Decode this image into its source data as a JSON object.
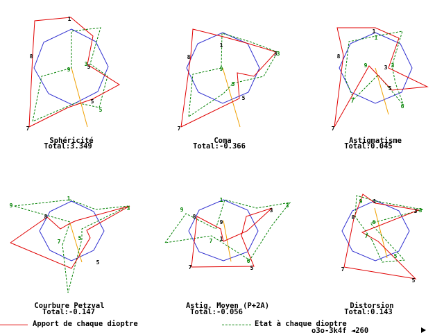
{
  "colors": {
    "apport": "#e00000",
    "etat": "#008000",
    "polygon": "#3030d0",
    "axis": "#f0a000",
    "text": "#000000"
  },
  "panels": [
    {
      "title": "Sphéricité",
      "total": "Total:3.349",
      "red": [
        [
          "7",
          42,
          183
        ],
        [
          "8",
          47,
          80
        ],
        [
          "9",
          50,
          30
        ],
        [
          "1",
          102,
          25
        ],
        [
          "2",
          134,
          52
        ],
        [
          "3",
          126,
          93
        ],
        [
          "4",
          172,
          122
        ],
        [
          "5",
          133,
          143
        ],
        [
          "6",
          98,
          155
        ],
        [
          "7",
          42,
          183
        ]
      ],
      "green": [
        [
          "7",
          47,
          175
        ],
        [
          "8",
          60,
          110
        ],
        [
          "9",
          103,
          98
        ],
        [
          "1",
          103,
          45
        ],
        [
          "2",
          145,
          40
        ],
        [
          "3",
          130,
          92
        ],
        [
          "4",
          155,
          110
        ],
        [
          "5",
          143,
          155
        ],
        [
          "6",
          110,
          148
        ],
        [
          "7",
          47,
          175
        ]
      ],
      "labels": [
        [
          "1",
          100,
          27,
          "k"
        ],
        [
          "8",
          45,
          81,
          "k"
        ],
        [
          "9",
          99,
          100,
          "g"
        ],
        [
          "5",
          128,
          96,
          "k"
        ],
        [
          "3",
          124,
          92,
          "g"
        ],
        [
          "5",
          133,
          146,
          "k"
        ],
        [
          "5",
          145,
          158,
          "g"
        ],
        [
          "7",
          40,
          185,
          "k"
        ]
      ],
      "poly": [
        [
          103,
          42
        ],
        [
          138,
          60
        ],
        [
          156,
          96
        ],
        [
          141,
          132
        ],
        [
          104,
          151
        ],
        [
          70,
          135
        ],
        [
          49,
          98
        ],
        [
          63,
          61
        ]
      ],
      "axis": [
        [
          103,
          98
        ],
        [
          126,
          183
        ]
      ]
    },
    {
      "title": "Coma",
      "total": "Total:-0.366",
      "red": [
        [
          "7",
          261,
          183
        ],
        [
          "8",
          275,
          80
        ],
        [
          "9",
          278,
          42
        ],
        [
          "1",
          322,
          53
        ],
        [
          "2",
          355,
          62
        ],
        [
          "3",
          398,
          75
        ],
        [
          "4",
          366,
          110
        ],
        [
          "5",
          342,
          105
        ],
        [
          "6",
          345,
          142
        ],
        [
          "7",
          261,
          183
        ]
      ],
      "green": [
        [
          "7",
          272,
          168
        ],
        [
          "8",
          278,
          107
        ],
        [
          "9",
          319,
          98
        ],
        [
          "1",
          320,
          48
        ],
        [
          "2",
          360,
          60
        ],
        [
          "3",
          400,
          75
        ],
        [
          "4",
          380,
          110
        ],
        [
          "5",
          336,
          120
        ],
        [
          "6",
          322,
          135
        ],
        [
          "7",
          272,
          168
        ]
      ],
      "labels": [
        [
          "1",
          319,
          65,
          "k"
        ],
        [
          "8",
          272,
          82,
          "k"
        ],
        [
          "9",
          319,
          99,
          "g"
        ],
        [
          "3",
          397,
          77,
          "k"
        ],
        [
          "3",
          401,
          77,
          "g"
        ],
        [
          "5",
          336,
          121,
          "g"
        ],
        [
          "5",
          351,
          141,
          "k"
        ],
        [
          "7",
          258,
          185,
          "k"
        ]
      ],
      "poly": [
        [
          321,
          47
        ],
        [
          357,
          63
        ],
        [
          374,
          98
        ],
        [
          358,
          133
        ],
        [
          321,
          149
        ],
        [
          286,
          133
        ],
        [
          269,
          98
        ],
        [
          285,
          63
        ]
      ],
      "axis": [
        [
          321,
          98
        ],
        [
          346,
          183
        ]
      ]
    },
    {
      "title": "Astigmatisme",
      "total": "Total:0.045",
      "red": [
        [
          "7",
          482,
          183
        ],
        [
          "8",
          495,
          80
        ],
        [
          "9",
          486,
          40
        ],
        [
          "1",
          541,
          40
        ],
        [
          "2",
          575,
          55
        ],
        [
          "3",
          560,
          98
        ],
        [
          "4",
          616,
          125
        ],
        [
          "5",
          565,
          130
        ],
        [
          "6",
          532,
          95
        ],
        [
          "7",
          482,
          183
        ]
      ],
      "green": [
        [
          "7",
          510,
          143
        ],
        [
          "8",
          497,
          112
        ],
        [
          "9",
          503,
          60
        ],
        [
          "1",
          542,
          52
        ],
        [
          "2",
          580,
          45
        ],
        [
          "3",
          565,
          95
        ],
        [
          "4",
          570,
          120
        ],
        [
          "5",
          582,
          152
        ],
        [
          "6",
          545,
          108
        ],
        [
          "7",
          510,
          143
        ]
      ],
      "labels": [
        [
          "1",
          539,
          45,
          "k"
        ],
        [
          "1",
          542,
          54,
          "g"
        ],
        [
          "8",
          488,
          81,
          "k"
        ],
        [
          "9",
          527,
          94,
          "g"
        ],
        [
          "3",
          556,
          97,
          "k"
        ],
        [
          "3",
          566,
          94,
          "g"
        ],
        [
          "5",
          562,
          127,
          "k"
        ],
        [
          "6",
          580,
          153,
          "g"
        ],
        [
          "7",
          508,
          145,
          "g"
        ],
        [
          "7",
          480,
          185,
          "k"
        ]
      ],
      "poly": [
        [
          541,
          47
        ],
        [
          577,
          63
        ],
        [
          594,
          98
        ],
        [
          579,
          133
        ],
        [
          541,
          149
        ],
        [
          506,
          133
        ],
        [
          489,
          98
        ],
        [
          505,
          63
        ]
      ],
      "axis": [
        [
          541,
          98
        ],
        [
          560,
          165
        ]
      ]
    },
    {
      "title": "Courbure Petzval",
      "total": "Total:-0.147",
      "red": [
        [
          "7",
          15,
          350
        ],
        [
          "8",
          68,
          313
        ],
        [
          "9",
          87,
          330
        ],
        [
          "1",
          101,
          322
        ],
        [
          "2",
          110,
          318
        ],
        [
          "3",
          187,
          297
        ],
        [
          "4",
          125,
          332
        ],
        [
          "5",
          130,
          343
        ],
        [
          "6",
          103,
          387
        ],
        [
          "7",
          15,
          350
        ]
      ],
      "green": [
        [
          "7",
          90,
          353
        ],
        [
          "8",
          101,
          320
        ],
        [
          "9",
          20,
          297
        ],
        [
          "1",
          101,
          288
        ],
        [
          "2",
          138,
          302
        ],
        [
          "3",
          185,
          297
        ],
        [
          "4",
          118,
          330
        ],
        [
          "5",
          118,
          345
        ],
        [
          "6",
          98,
          422
        ],
        [
          "7",
          90,
          353
        ]
      ],
      "labels": [
        [
          "1",
          99,
          286,
          "g"
        ],
        [
          "9",
          16,
          296,
          "g"
        ],
        [
          "8",
          66,
          312,
          "k"
        ],
        [
          "3",
          185,
          300,
          "g"
        ],
        [
          "5",
          115,
          343,
          "g"
        ],
        [
          "7",
          85,
          348,
          "g"
        ],
        [
          "5",
          141,
          378,
          "k"
        ]
      ],
      "poly": [
        [
          103,
          290
        ],
        [
          135,
          305
        ],
        [
          150,
          333
        ],
        [
          135,
          361
        ],
        [
          103,
          376
        ],
        [
          72,
          361
        ],
        [
          57,
          333
        ],
        [
          72,
          305
        ]
      ],
      "axis": [
        [
          101,
          322
        ],
        [
          118,
          378
        ]
      ]
    },
    {
      "title": "Astig. Moyen (P+2A)",
      "total": "Total:-0.056",
      "red": [
        [
          "7",
          276,
          385
        ],
        [
          "8",
          284,
          312
        ],
        [
          "9",
          318,
          330
        ],
        [
          "1",
          322,
          348
        ],
        [
          "2",
          356,
          333
        ],
        [
          "3",
          392,
          300
        ],
        [
          "4",
          355,
          312
        ],
        [
          "5",
          348,
          340
        ],
        [
          "6",
          366,
          384
        ],
        [
          "7",
          276,
          385
        ]
      ],
      "green": [
        [
          "7",
          238,
          350
        ],
        [
          "8",
          268,
          308
        ],
        [
          "9",
          311,
          330
        ],
        [
          "1",
          324,
          288
        ],
        [
          "2",
          370,
          300
        ],
        [
          "3",
          418,
          292
        ],
        [
          "4",
          392,
          325
        ],
        [
          "5",
          360,
          375
        ],
        [
          "6",
          305,
          340
        ],
        [
          "7",
          238,
          350
        ]
      ],
      "labels": [
        [
          "9",
          262,
          302,
          "g"
        ],
        [
          "8",
          280,
          312,
          "k"
        ],
        [
          "1",
          319,
          288,
          "g"
        ],
        [
          "9",
          319,
          320,
          "k"
        ],
        [
          "3",
          391,
          303,
          "k"
        ],
        [
          "3",
          414,
          296,
          "g"
        ],
        [
          "7",
          304,
          347,
          "g"
        ],
        [
          "1",
          319,
          344,
          "k"
        ],
        [
          "6",
          358,
          376,
          "g"
        ],
        [
          "5",
          363,
          386,
          "k"
        ],
        [
          "7",
          274,
          385,
          "k"
        ]
      ],
      "poly": [
        [
          322,
          288
        ],
        [
          357,
          303
        ],
        [
          372,
          333
        ],
        [
          357,
          363
        ],
        [
          322,
          376
        ],
        [
          287,
          363
        ],
        [
          272,
          333
        ],
        [
          287,
          303
        ]
      ],
      "axis": [
        [
          322,
          318
        ],
        [
          333,
          377
        ]
      ]
    },
    {
      "title": "Distorsion",
      "total": "Total:0.143",
      "red": [
        [
          "7",
          496,
          385
        ],
        [
          "8",
          510,
          315
        ],
        [
          "9",
          523,
          280
        ],
        [
          "1",
          541,
          293
        ],
        [
          "2",
          574,
          298
        ],
        [
          "3",
          603,
          303
        ],
        [
          "4",
          522,
          335
        ],
        [
          "5",
          545,
          348
        ],
        [
          "6",
          599,
          402
        ],
        [
          "7",
          496,
          385
        ]
      ],
      "green": [
        [
          "7",
          536,
          346
        ],
        [
          "8",
          512,
          312
        ],
        [
          "9",
          514,
          282
        ],
        [
          "1",
          542,
          290
        ],
        [
          "2",
          597,
          300
        ],
        [
          "3",
          610,
          302
        ],
        [
          "4",
          534,
          322
        ],
        [
          "5",
          583,
          375
        ],
        [
          "6",
          551,
          378
        ],
        [
          "7",
          536,
          346
        ]
      ],
      "labels": [
        [
          "9",
          520,
          290,
          "g"
        ],
        [
          "1",
          540,
          290,
          "k"
        ],
        [
          "8",
          509,
          313,
          "k"
        ],
        [
          "3",
          599,
          304,
          "k"
        ],
        [
          "3",
          606,
          303,
          "g"
        ],
        [
          "6",
          539,
          320,
          "g"
        ],
        [
          "5",
          570,
          369,
          "g"
        ],
        [
          "7",
          528,
          340,
          "g"
        ],
        [
          "5",
          596,
          404,
          "k"
        ],
        [
          "7",
          494,
          388,
          "k"
        ]
      ],
      "poly": [
        [
          541,
          289
        ],
        [
          575,
          304
        ],
        [
          590,
          333
        ],
        [
          575,
          362
        ],
        [
          541,
          376
        ],
        [
          508,
          362
        ],
        [
          493,
          333
        ],
        [
          508,
          304
        ]
      ],
      "axis": [
        [
          540,
          300
        ],
        [
          558,
          372
        ]
      ]
    }
  ],
  "legend": {
    "apport": "Apport de chaque dioptre",
    "etat": "Etat à chaque dioptre"
  },
  "status": {
    "code": "o3o-3k4f ◄260"
  }
}
